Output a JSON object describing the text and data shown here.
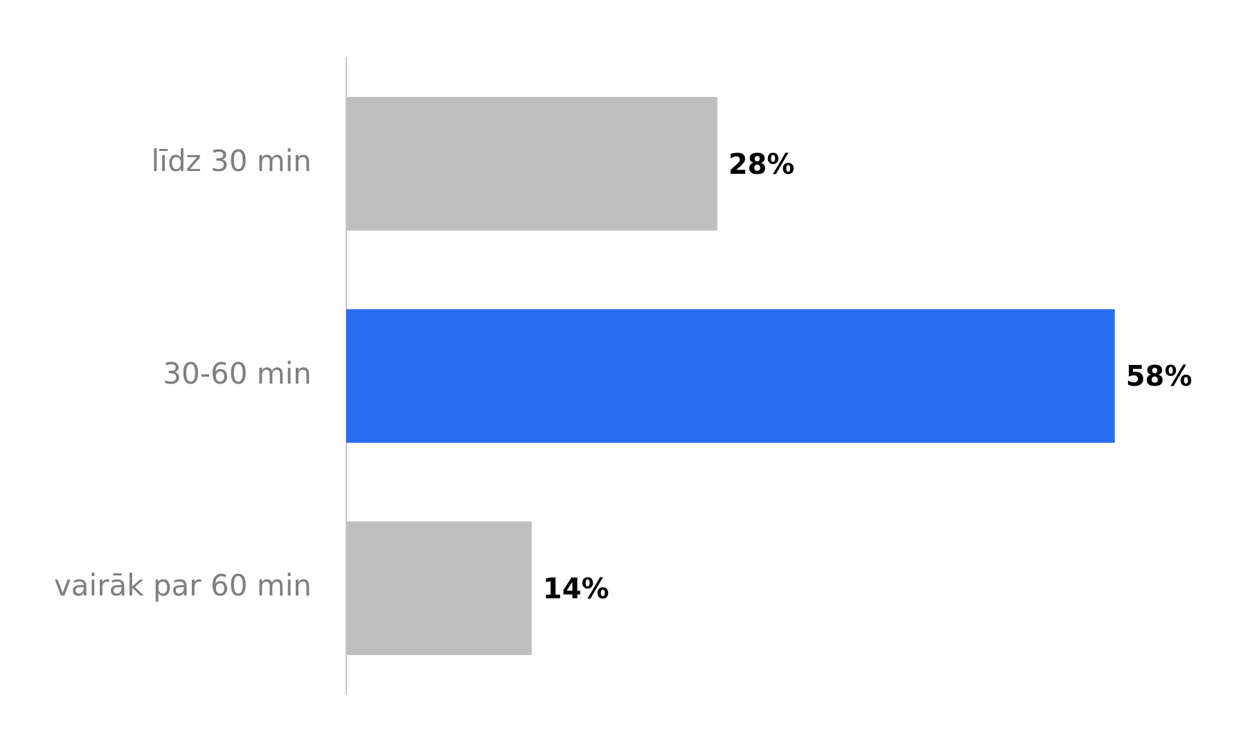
{
  "chart_data": {
    "type": "bar",
    "orientation": "horizontal",
    "categories": [
      "līdz 30 min",
      "30-60 min",
      "vairāk par 60 min"
    ],
    "values": [
      28,
      58,
      14
    ],
    "colors": [
      "#bfbfbf",
      "#276ef1",
      "#bfbfbf"
    ],
    "value_labels": [
      "28%",
      "58%",
      "14%"
    ],
    "legend": false,
    "tick_labels": "y"
  }
}
